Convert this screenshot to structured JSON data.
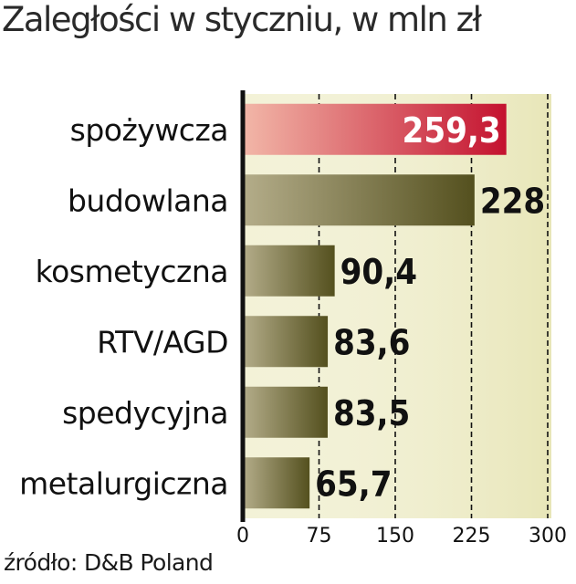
{
  "title": "Zaległości w styczniu, w mln zł",
  "source": "źródło: D&B Poland",
  "colors": {
    "highlight_bar_from": "#f2b7a8",
    "highlight_bar_to": "#c4122f",
    "bar_from": "#b4ad8a",
    "bar_to": "#54501e",
    "plot_bg": "#e8e6b8"
  },
  "chart_data": {
    "type": "bar",
    "orientation": "horizontal",
    "categories": [
      "spożywcza",
      "budowlana",
      "kosmetyczna",
      "RTV/AGD",
      "spedycyjna",
      "metalurgiczna"
    ],
    "values": [
      259.3,
      228,
      90.4,
      83.6,
      83.5,
      65.7
    ],
    "value_labels": [
      "259,3",
      "228",
      "90,4",
      "83,6",
      "83,5",
      "65,7"
    ],
    "highlight_index": 0,
    "xlim": [
      0,
      300
    ],
    "ticks": [
      0,
      75,
      150,
      225,
      300
    ],
    "tick_labels": [
      "0",
      "75",
      "150",
      "225",
      "300"
    ],
    "grid": "vertical-dashed"
  }
}
